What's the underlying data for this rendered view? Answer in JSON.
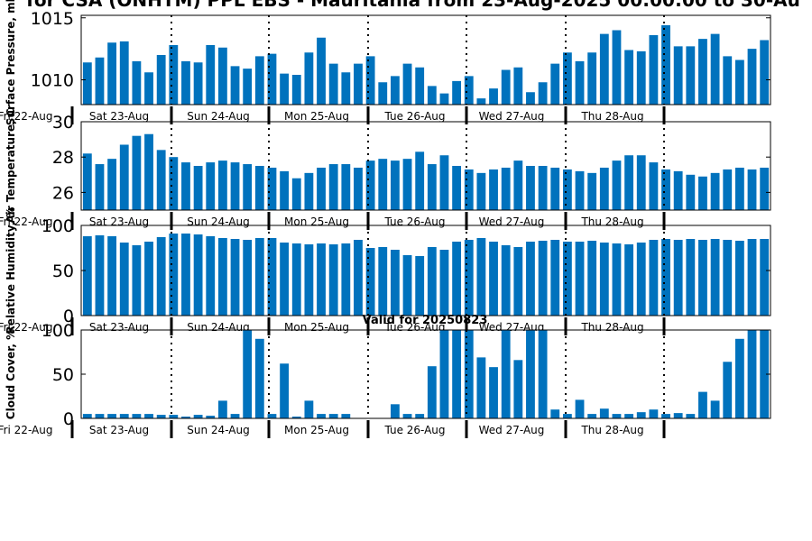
{
  "figure": {
    "title": "for CSA (ONHTM) PPL EBS  - Mauritania from 23-Aug-2025 00:00:00 to 30-Au",
    "valid_label": "Valid for 20250823"
  },
  "day_labels": [
    "Fri 22-Aug",
    "Sat 23-Aug",
    "Sun 24-Aug",
    "Mon 25-Aug",
    "Tue 26-Aug",
    "Wed 27-Aug",
    "Thu 28-Aug"
  ],
  "colors": {
    "bar": "#0072bd",
    "axis": "#000000",
    "background": "#ffffff"
  },
  "chart_data": [
    {
      "type": "bar",
      "ylabel": "Surface Pressure, mb",
      "ylim": [
        1008,
        1015.2
      ],
      "yticks": [
        1010,
        1015
      ],
      "values": [
        1011.4,
        1011.8,
        1013.0,
        1013.1,
        1011.5,
        1010.6,
        1012.0,
        1012.8,
        1011.5,
        1011.4,
        1012.8,
        1012.6,
        1011.1,
        1010.9,
        1011.9,
        1012.1,
        1010.5,
        1010.4,
        1012.2,
        1013.4,
        1011.3,
        1010.6,
        1011.3,
        1011.9,
        1009.8,
        1010.3,
        1011.3,
        1011.0,
        1009.5,
        1008.9,
        1009.9,
        1010.3,
        1008.5,
        1009.3,
        1010.8,
        1011.0,
        1009.0,
        1009.8,
        1011.3,
        1012.2,
        1011.5,
        1012.2,
        1013.7,
        1014.0,
        1012.4,
        1012.3,
        1013.6,
        1014.4,
        1012.7,
        1012.7,
        1013.3,
        1013.7,
        1011.9,
        1011.6,
        1012.5,
        1013.2
      ]
    },
    {
      "type": "bar",
      "ylabel": "Air Temperature, C",
      "ylim": [
        25,
        30
      ],
      "yticks": [
        26,
        28,
        30
      ],
      "values": [
        28.2,
        27.6,
        27.9,
        28.7,
        29.2,
        29.3,
        28.4,
        28.0,
        27.7,
        27.5,
        27.7,
        27.8,
        27.7,
        27.6,
        27.5,
        27.4,
        27.2,
        26.8,
        27.1,
        27.4,
        27.6,
        27.6,
        27.4,
        27.8,
        27.9,
        27.8,
        27.9,
        28.3,
        27.6,
        28.1,
        27.5,
        27.3,
        27.1,
        27.3,
        27.4,
        27.8,
        27.5,
        27.5,
        27.4,
        27.3,
        27.2,
        27.1,
        27.4,
        27.8,
        28.1,
        28.1,
        27.7,
        27.3,
        27.2,
        27.0,
        26.9,
        27.1,
        27.3,
        27.4,
        27.3,
        27.4
      ]
    },
    {
      "type": "bar",
      "ylabel": "Relative Humidity, %",
      "ylim": [
        0,
        100
      ],
      "yticks": [
        0,
        50,
        100
      ],
      "values": [
        88,
        89,
        88,
        81,
        78,
        82,
        87,
        91,
        91,
        90,
        88,
        86,
        85,
        84,
        86,
        86,
        81,
        80,
        79,
        80,
        79,
        80,
        84,
        75,
        76,
        73,
        67,
        66,
        76,
        73,
        82,
        84,
        86,
        82,
        78,
        76,
        82,
        83,
        84,
        82,
        82,
        83,
        81,
        80,
        79,
        81,
        84,
        85,
        84,
        85,
        84,
        85,
        84,
        83,
        85,
        85
      ]
    },
    {
      "type": "bar",
      "ylabel": "Cloud Cover, %",
      "ylim": [
        0,
        100
      ],
      "yticks": [
        0,
        50,
        100
      ],
      "values": [
        5,
        5,
        5,
        5,
        5,
        5,
        4,
        4,
        2,
        4,
        3,
        20,
        5,
        100,
        90,
        5,
        62,
        2,
        20,
        5,
        5,
        5,
        0,
        0,
        0,
        16,
        5,
        5,
        59,
        100,
        100,
        100,
        69,
        58,
        100,
        66,
        100,
        100,
        10,
        5,
        21,
        5,
        11,
        5,
        5,
        7,
        10,
        5,
        6,
        5,
        30,
        20,
        64,
        90,
        100,
        100
      ]
    }
  ]
}
